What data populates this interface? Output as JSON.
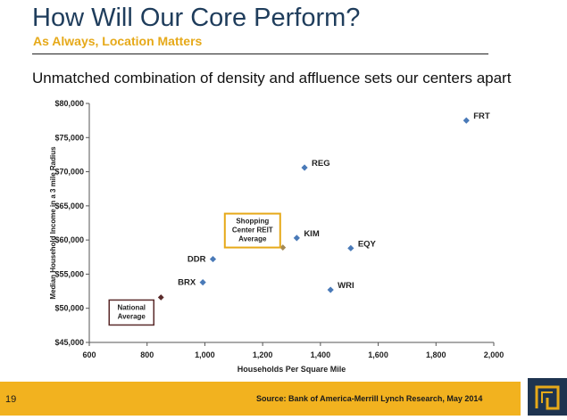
{
  "header": {
    "title": "How Will Our Core Perform?",
    "subtitle": "As Always, Location Matters"
  },
  "headline": "Unmatched combination of density and affluence sets our centers apart",
  "footer": {
    "page_number": "19",
    "source": "Source: Bank of America-Merrill Lynch Research, May 2014"
  },
  "colors": {
    "title": "#1f3d5c",
    "accent": "#f2b21f",
    "point": "#4a7ab8",
    "reit_avg": "#a58a54",
    "national_avg": "#5a2a2a",
    "logo": "#1e3450"
  },
  "chart_data": {
    "type": "scatter",
    "xlabel": "Households Per Square Mile",
    "ylabel": "Median Household Income in a 3 mile Radius",
    "xlim": [
      600,
      2000
    ],
    "ylim": [
      45000,
      80000
    ],
    "xticks": [
      {
        "value": 600,
        "label": "600"
      },
      {
        "value": 800,
        "label": "800"
      },
      {
        "value": 1000,
        "label": "1,000"
      },
      {
        "value": 1200,
        "label": "1,200"
      },
      {
        "value": 1400,
        "label": "1,400"
      },
      {
        "value": 1600,
        "label": "1,600"
      },
      {
        "value": 1800,
        "label": "1,800"
      },
      {
        "value": 2000,
        "label": "2,000"
      }
    ],
    "yticks": [
      {
        "value": 45000,
        "label": "$45,000"
      },
      {
        "value": 50000,
        "label": "$50,000"
      },
      {
        "value": 55000,
        "label": "$55,000"
      },
      {
        "value": 60000,
        "label": "$60,000"
      },
      {
        "value": 65000,
        "label": "$65,000"
      },
      {
        "value": 70000,
        "label": "$70,000"
      },
      {
        "value": 75000,
        "label": "$75,000"
      },
      {
        "value": 80000,
        "label": "$80,000"
      }
    ],
    "grid": false,
    "points": [
      {
        "label": "FRT",
        "x": 1905,
        "y": 77500,
        "label_side": "right"
      },
      {
        "label": "REG",
        "x": 1345,
        "y": 70600,
        "label_side": "right"
      },
      {
        "label": "KIM",
        "x": 1318,
        "y": 60300,
        "label_side": "right"
      },
      {
        "label": "EQY",
        "x": 1505,
        "y": 58800,
        "label_side": "right"
      },
      {
        "label": "DDR",
        "x": 1028,
        "y": 57200,
        "label_side": "left"
      },
      {
        "label": "BRX",
        "x": 993,
        "y": 53800,
        "label_side": "left"
      },
      {
        "label": "WRI",
        "x": 1435,
        "y": 52700,
        "label_side": "right"
      }
    ],
    "reference_points": [
      {
        "label_lines": [
          "Shopping",
          "Center REIT",
          "Average"
        ],
        "x": 1270,
        "y": 58900,
        "kind": "reit"
      },
      {
        "label_lines": [
          "National",
          "Average"
        ],
        "x": 848,
        "y": 51600,
        "kind": "national"
      }
    ]
  }
}
